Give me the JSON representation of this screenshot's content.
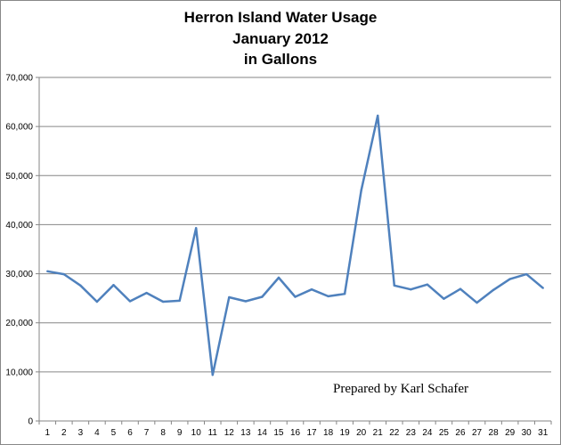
{
  "chart_data": {
    "type": "line",
    "title_lines": [
      "Herron Island Water Usage",
      "January 2012",
      "in Gallons"
    ],
    "xlabel": "",
    "ylabel": "",
    "x": [
      1,
      2,
      3,
      4,
      5,
      6,
      7,
      8,
      9,
      10,
      11,
      12,
      13,
      14,
      15,
      16,
      17,
      18,
      19,
      20,
      21,
      22,
      23,
      24,
      25,
      26,
      27,
      28,
      29,
      30,
      31
    ],
    "series": [
      {
        "values": [
          30500,
          29900,
          27600,
          24300,
          27700,
          24400,
          26100,
          24300,
          24500,
          39300,
          9400,
          25200,
          24400,
          25300,
          29200,
          25300,
          26800,
          25400,
          25900,
          47000,
          62200,
          27600,
          26800,
          27800,
          24900,
          26900,
          24100,
          26700,
          28900,
          29900,
          27100
        ],
        "color": "#4f81bd"
      }
    ],
    "ylim": [
      0,
      70000
    ],
    "yticks": [
      "0",
      "10,000",
      "20,000",
      "30,000",
      "40,000",
      "50,000",
      "60,000",
      "70,000"
    ],
    "ytick_values": [
      0,
      10000,
      20000,
      30000,
      40000,
      50000,
      60000,
      70000
    ],
    "grid": true,
    "gridline_color": "#868686",
    "legend": "none",
    "annotation": "Prepared by Karl Schafer"
  }
}
